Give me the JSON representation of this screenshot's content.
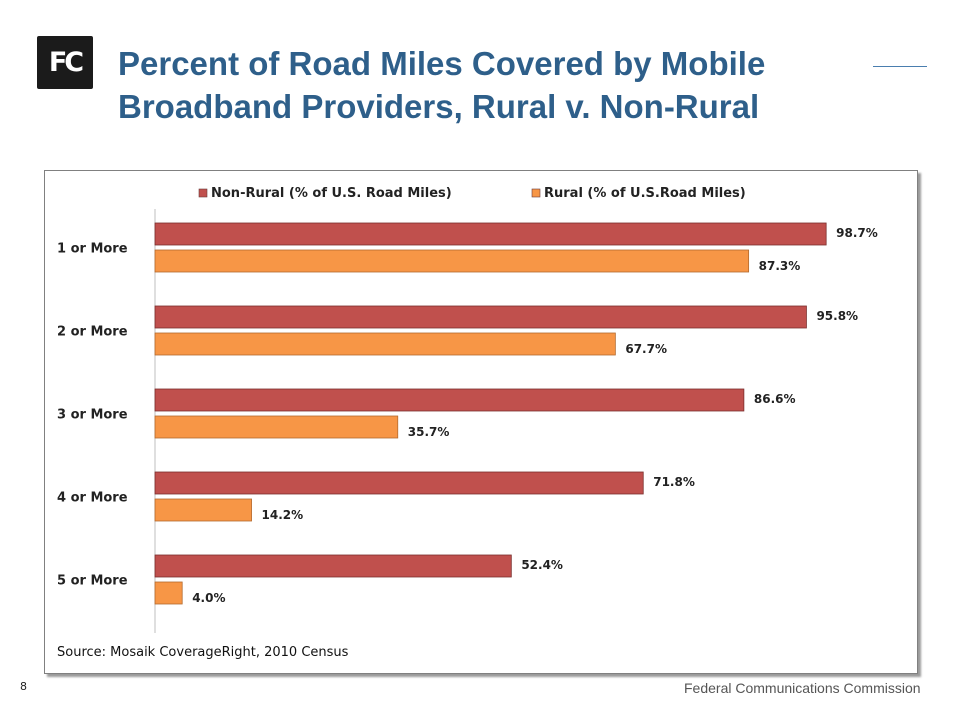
{
  "logo": {
    "text": "FC",
    "icon": "fcc-logo-icon"
  },
  "slide": {
    "title": "Percent of Road Miles Covered by Mobile Broadband Providers, Rural v. Non-Rural",
    "source": "Source:  Mosaik CoverageRight, 2010 Census",
    "page_number": "8",
    "footer": "Federal Communications Commission"
  },
  "chart_data": {
    "type": "bar",
    "orientation": "horizontal",
    "categories": [
      "1 or More",
      "2 or More",
      "3 or More",
      "4 or More",
      "5 or More"
    ],
    "series": [
      {
        "name": "Non-Rural (% of U.S. Road Miles)",
        "values": [
          98.7,
          95.8,
          86.6,
          71.8,
          52.4
        ],
        "labels": [
          "98.7%",
          "95.8%",
          "86.6%",
          "71.8%",
          "52.4%"
        ],
        "color": "#c0504d"
      },
      {
        "name": "Rural (% of U.S.Road Miles)",
        "values": [
          87.3,
          67.7,
          35.7,
          14.2,
          4.0
        ],
        "labels": [
          "87.3%",
          "67.7%",
          "35.7%",
          "14.2%",
          "4.0%"
        ],
        "color": "#f79646"
      }
    ],
    "xlim": [
      0,
      100
    ],
    "grid": false,
    "legend_position": "top"
  }
}
